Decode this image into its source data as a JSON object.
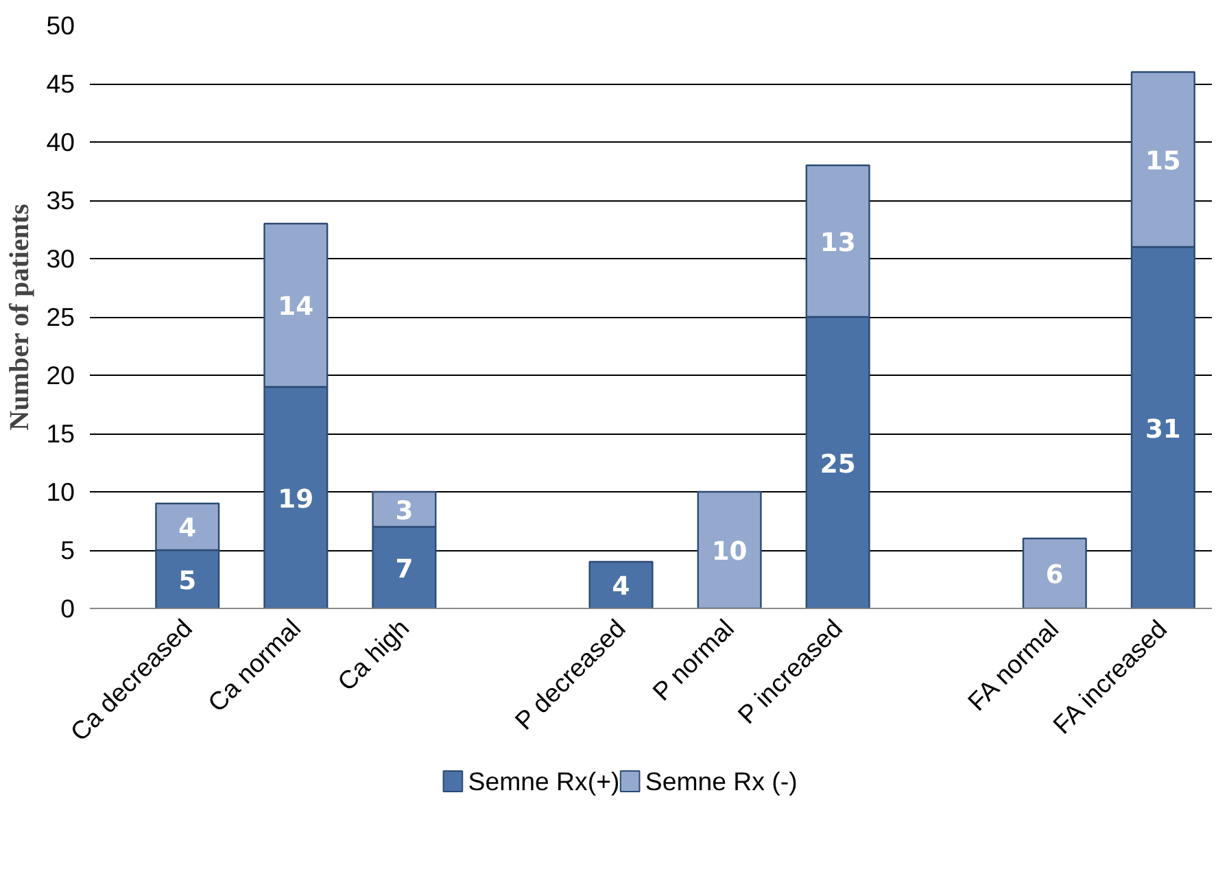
{
  "chart_data": {
    "type": "bar",
    "stacked": true,
    "ylabel": "Number of patients",
    "categories": [
      "Ca decreased",
      "Ca normal",
      "Ca high",
      null,
      "P decreased",
      "P normal",
      "P increased",
      null,
      "FA normal",
      "FA increased"
    ],
    "series": [
      {
        "name": "Semne Rx(+)",
        "color": "#4a72a6",
        "values": [
          5,
          19,
          7,
          null,
          4,
          null,
          25,
          null,
          null,
          31
        ]
      },
      {
        "name": "Semne Rx (-)",
        "color": "#95a9cf",
        "values": [
          4,
          14,
          3,
          null,
          null,
          10,
          13,
          null,
          6,
          15
        ]
      }
    ],
    "ylim": [
      0,
      50
    ],
    "yticks": [
      0,
      5,
      10,
      15,
      20,
      25,
      30,
      35,
      40,
      45,
      50
    ],
    "grid": "y",
    "legend": "bottom",
    "data_labels": true
  }
}
